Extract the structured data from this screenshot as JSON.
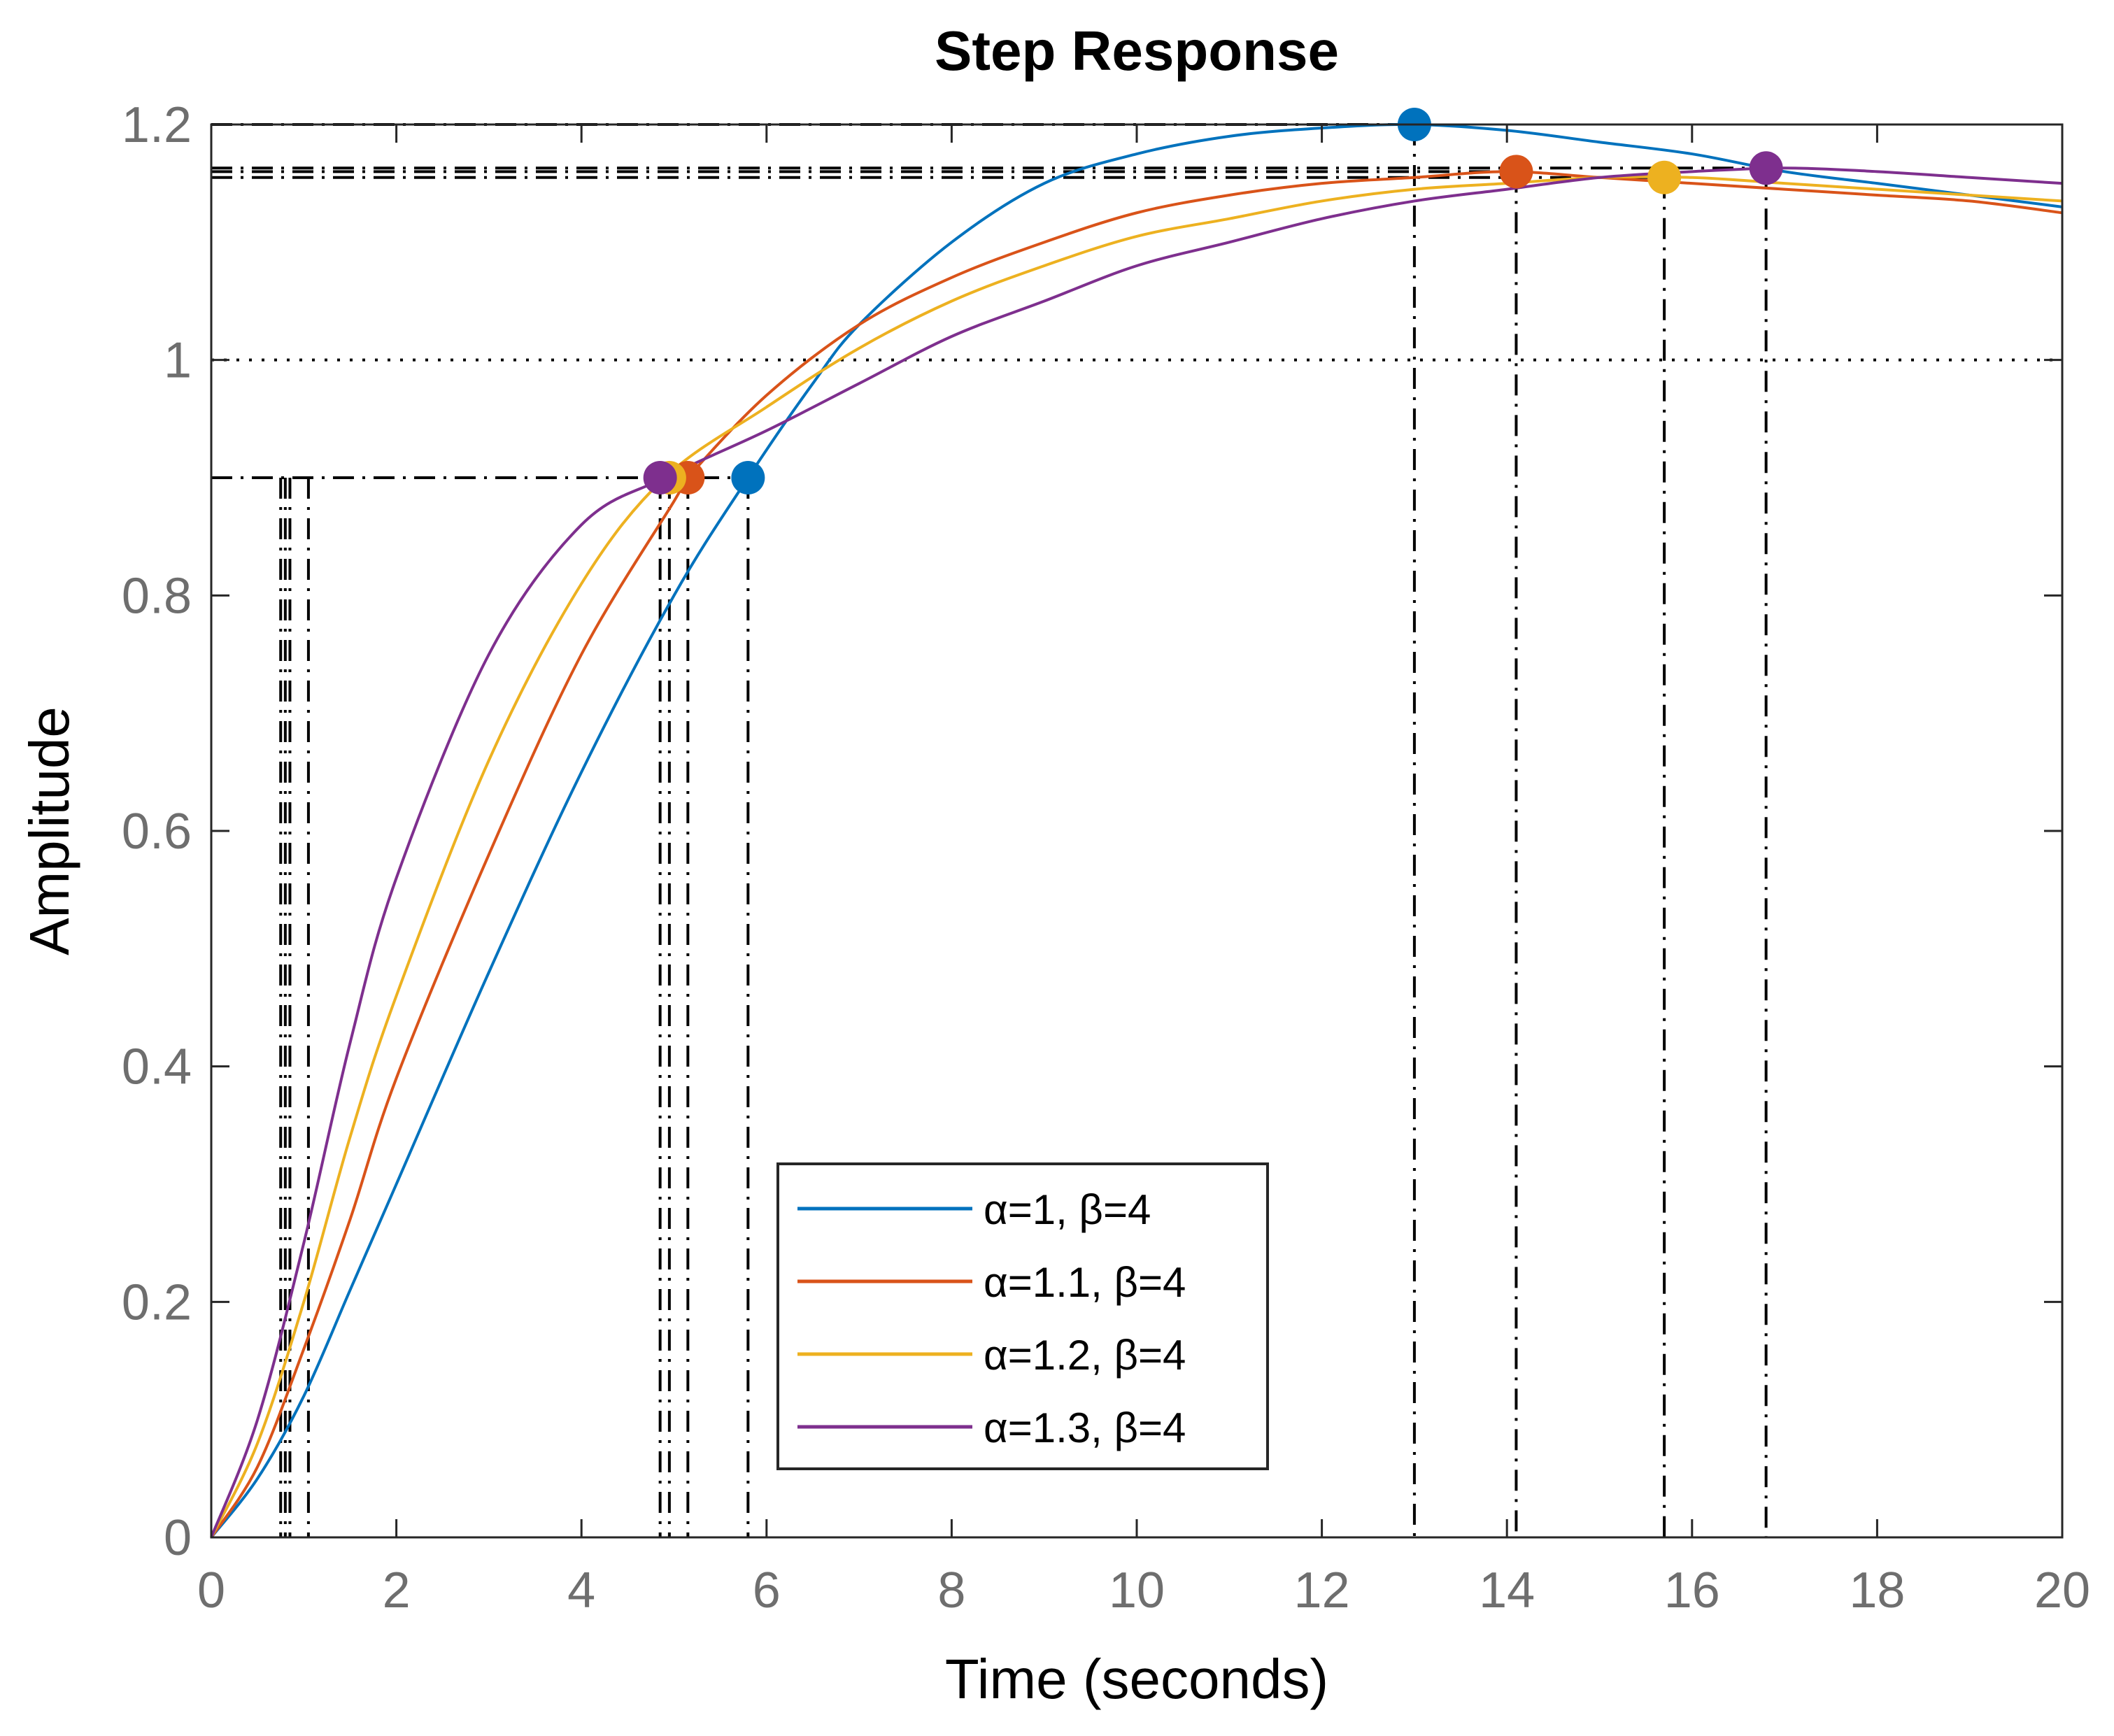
{
  "chart_data": {
    "type": "line",
    "title": "Step Response",
    "xlabel": "Time (seconds)",
    "ylabel": "Amplitude",
    "xlim": [
      0,
      20
    ],
    "ylim": [
      0,
      1.2
    ],
    "xticks": [
      0,
      2,
      4,
      6,
      8,
      10,
      12,
      14,
      16,
      18,
      20
    ],
    "xtick_labels": [
      "0",
      "2",
      "4",
      "6",
      "8",
      "10",
      "12",
      "14",
      "16",
      "18",
      "20"
    ],
    "yticks": [
      0,
      0.2,
      0.4,
      0.6,
      0.8,
      1,
      1.2
    ],
    "ytick_labels": [
      "0",
      "0.2",
      "0.4",
      "0.6",
      "0.8",
      "1",
      "1.2"
    ],
    "reference_line": {
      "y": 1,
      "style": "dotted"
    },
    "legend_position": "lower-center",
    "series": [
      {
        "name": "α=1, β=4",
        "alpha": "1",
        "beta": "4",
        "color": "#0072BD",
        "x": [
          0,
          0.5,
          1,
          1.5,
          2,
          3,
          4,
          5,
          5.8,
          6.5,
          7,
          8,
          9,
          10,
          11,
          12,
          13,
          14,
          15,
          16,
          17,
          18,
          19,
          20
        ],
        "y": [
          0,
          0.05,
          0.12,
          0.21,
          0.3,
          0.48,
          0.65,
          0.8,
          0.9,
          0.98,
          1.03,
          1.1,
          1.15,
          1.175,
          1.19,
          1.197,
          1.2,
          1.195,
          1.185,
          1.175,
          1.16,
          1.15,
          1.14,
          1.13
        ],
        "rise_time_markers": [
          0.8,
          5.8
        ],
        "settling_level": 0.9,
        "peak": {
          "x": 13,
          "y": 1.2
        }
      },
      {
        "name": "α=1.1, β=4",
        "alpha": "1.1",
        "beta": "4",
        "color": "#D95319",
        "x": [
          0,
          0.5,
          1,
          1.5,
          2,
          3,
          4,
          5,
          5.15,
          6,
          7,
          8,
          9,
          10,
          11,
          12,
          13,
          14,
          15,
          16,
          17,
          18,
          19,
          20
        ],
        "y": [
          0,
          0.06,
          0.16,
          0.27,
          0.39,
          0.58,
          0.75,
          0.88,
          0.9,
          0.97,
          1.03,
          1.07,
          1.1,
          1.125,
          1.14,
          1.15,
          1.155,
          1.16,
          1.155,
          1.15,
          1.145,
          1.14,
          1.135,
          1.125
        ],
        "rise_time_markers": [
          0.75,
          5.15
        ],
        "settling_level": 0.9,
        "peak": {
          "x": 14.1,
          "y": 1.16
        }
      },
      {
        "name": "α=1.2, β=4",
        "alpha": "1.2",
        "beta": "4",
        "color": "#EDB120",
        "x": [
          0,
          0.5,
          1,
          1.5,
          2,
          3,
          4,
          4.9,
          6,
          7,
          8,
          9,
          10,
          11,
          12,
          13,
          14,
          15,
          16,
          17,
          18,
          19,
          20
        ],
        "y": [
          0,
          0.08,
          0.2,
          0.34,
          0.46,
          0.66,
          0.81,
          0.9,
          0.96,
          1.01,
          1.05,
          1.08,
          1.105,
          1.12,
          1.135,
          1.145,
          1.15,
          1.155,
          1.155,
          1.15,
          1.145,
          1.14,
          1.135
        ],
        "rise_time_markers": [
          0.85,
          4.95
        ],
        "settling_level": 0.9,
        "peak": {
          "x": 15.7,
          "y": 1.155
        }
      },
      {
        "name": "α=1.3, β=4",
        "alpha": "1.3",
        "beta": "4",
        "color": "#7E2F8E",
        "x": [
          0,
          0.5,
          1,
          1.5,
          2,
          3,
          4,
          4.9,
          6,
          7,
          8,
          9,
          10,
          11,
          12,
          13,
          14,
          15,
          16,
          17,
          18,
          19,
          20
        ],
        "y": [
          0,
          0.1,
          0.25,
          0.42,
          0.56,
          0.75,
          0.86,
          0.9,
          0.94,
          0.98,
          1.02,
          1.05,
          1.08,
          1.1,
          1.12,
          1.135,
          1.145,
          1.155,
          1.16,
          1.163,
          1.16,
          1.155,
          1.15
        ],
        "rise_time_markers": [
          1.05,
          4.85
        ],
        "settling_level": 0.9,
        "peak": {
          "x": 16.8,
          "y": 1.163
        }
      }
    ]
  }
}
